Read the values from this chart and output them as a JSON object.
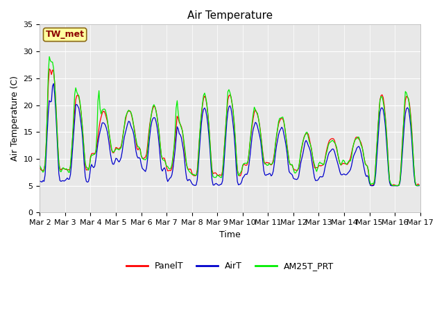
{
  "title": "Air Temperature",
  "ylabel": "Air Temperature (C)",
  "xlabel": "Time",
  "annotation": "TW_met",
  "ylim": [
    0,
    35
  ],
  "yticks": [
    0,
    5,
    10,
    15,
    20,
    25,
    30,
    35
  ],
  "xtick_labels": [
    "Mar 2",
    "Mar 3",
    "Mar 4",
    "Mar 5",
    "Mar 6",
    "Mar 7",
    "Mar 8",
    "Mar 9",
    "Mar 10",
    "Mar 11",
    "Mar 12",
    "Mar 13",
    "Mar 14",
    "Mar 15",
    "Mar 16",
    "Mar 17"
  ],
  "series_colors": {
    "PanelT": "#ff0000",
    "AirT": "#0000cc",
    "AM25T_PRT": "#00ee00"
  },
  "fig_facecolor": "#ffffff",
  "ax_facecolor": "#e8e8e8",
  "grid_color": "#ffffff",
  "title_fontsize": 11,
  "axis_fontsize": 9,
  "tick_fontsize": 8,
  "legend_fontsize": 9,
  "linewidth": 0.9
}
